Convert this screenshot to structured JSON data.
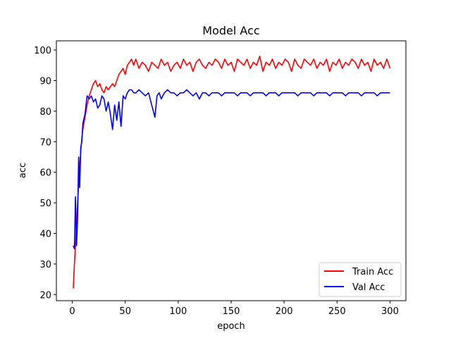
{
  "chart_data": {
    "type": "line",
    "title": "Model Acc",
    "xlabel": "epoch",
    "ylabel": "acc",
    "xlim": [
      -15,
      315
    ],
    "ylim": [
      18,
      103
    ],
    "xticks": [
      0,
      50,
      100,
      150,
      200,
      250,
      300
    ],
    "yticks": [
      20,
      30,
      40,
      50,
      60,
      70,
      80,
      90,
      100
    ],
    "grid": false,
    "legend_position": "lower-right",
    "series": [
      {
        "name": "Train Acc",
        "color": "#ff0000",
        "x": [
          1,
          2,
          3,
          4,
          5,
          6,
          7,
          8,
          9,
          10,
          12,
          14,
          16,
          18,
          20,
          22,
          24,
          26,
          28,
          30,
          32,
          34,
          36,
          38,
          40,
          42,
          44,
          46,
          48,
          50,
          52,
          54,
          56,
          58,
          60,
          63,
          66,
          69,
          72,
          75,
          78,
          81,
          84,
          87,
          90,
          93,
          96,
          99,
          102,
          105,
          108,
          111,
          114,
          117,
          120,
          123,
          126,
          129,
          132,
          135,
          138,
          141,
          144,
          147,
          150,
          153,
          156,
          159,
          162,
          165,
          168,
          171,
          174,
          177,
          180,
          183,
          186,
          189,
          192,
          195,
          198,
          201,
          204,
          207,
          210,
          213,
          216,
          219,
          222,
          225,
          228,
          231,
          234,
          237,
          240,
          243,
          246,
          249,
          252,
          255,
          258,
          261,
          264,
          267,
          270,
          273,
          276,
          279,
          282,
          285,
          288,
          291,
          294,
          297,
          300
        ],
        "y": [
          22,
          30,
          36,
          43,
          50,
          56,
          62,
          67,
          71,
          74,
          78,
          82,
          85,
          87,
          89,
          90,
          88,
          89,
          87,
          86,
          88,
          87,
          88,
          89,
          88,
          90,
          92,
          93,
          94,
          92,
          95,
          96,
          97,
          95,
          97,
          94,
          96,
          95,
          93,
          96,
          95,
          94,
          97,
          95,
          96,
          93,
          95,
          96,
          94,
          97,
          95,
          96,
          93,
          96,
          97,
          95,
          94,
          96,
          95,
          97,
          96,
          94,
          97,
          95,
          96,
          93,
          97,
          96,
          95,
          97,
          94,
          96,
          95,
          98,
          93,
          96,
          95,
          97,
          94,
          96,
          95,
          97,
          96,
          93,
          97,
          95,
          94,
          97,
          96,
          95,
          97,
          94,
          96,
          95,
          97,
          93,
          96,
          95,
          97,
          94,
          96,
          95,
          97,
          96,
          94,
          97,
          95,
          96,
          93,
          97,
          95,
          96,
          94,
          97,
          94
        ]
      },
      {
        "name": "Val Acc",
        "color": "#0000ff",
        "x": [
          1,
          2,
          3,
          4,
          5,
          6,
          7,
          8,
          9,
          10,
          12,
          14,
          16,
          18,
          20,
          22,
          24,
          26,
          28,
          30,
          32,
          34,
          36,
          38,
          40,
          42,
          44,
          46,
          48,
          50,
          52,
          54,
          56,
          58,
          60,
          63,
          66,
          69,
          72,
          75,
          78,
          80,
          82,
          84,
          87,
          90,
          93,
          96,
          99,
          102,
          105,
          108,
          111,
          114,
          117,
          120,
          123,
          126,
          129,
          132,
          135,
          138,
          141,
          144,
          147,
          150,
          153,
          156,
          159,
          162,
          165,
          168,
          171,
          174,
          177,
          180,
          183,
          186,
          189,
          192,
          195,
          198,
          201,
          204,
          207,
          210,
          213,
          216,
          219,
          222,
          225,
          228,
          231,
          234,
          237,
          240,
          243,
          246,
          249,
          252,
          255,
          258,
          261,
          264,
          267,
          270,
          273,
          276,
          279,
          282,
          285,
          288,
          291,
          294,
          297,
          300
        ],
        "y": [
          36,
          35,
          52,
          36,
          45,
          65,
          55,
          68,
          70,
          76,
          79,
          85,
          84,
          85,
          83,
          84,
          81,
          82,
          85,
          84,
          80,
          83,
          79,
          74,
          82,
          77,
          83,
          75,
          85,
          84,
          86,
          87,
          87,
          86,
          86,
          87,
          86,
          85,
          86,
          82,
          78,
          85,
          86,
          84,
          86,
          87,
          86,
          86,
          85,
          86,
          86,
          87,
          86,
          85,
          86,
          84,
          86,
          86,
          85,
          86,
          86,
          86,
          85,
          86,
          86,
          86,
          86,
          85,
          86,
          86,
          86,
          85,
          86,
          86,
          86,
          86,
          85,
          86,
          86,
          86,
          85,
          86,
          86,
          86,
          86,
          86,
          85,
          86,
          86,
          86,
          86,
          85,
          86,
          86,
          86,
          86,
          85,
          86,
          86,
          86,
          86,
          85,
          86,
          86,
          86,
          86,
          85,
          86,
          86,
          86,
          86,
          85,
          86,
          86,
          86,
          86
        ]
      }
    ]
  }
}
